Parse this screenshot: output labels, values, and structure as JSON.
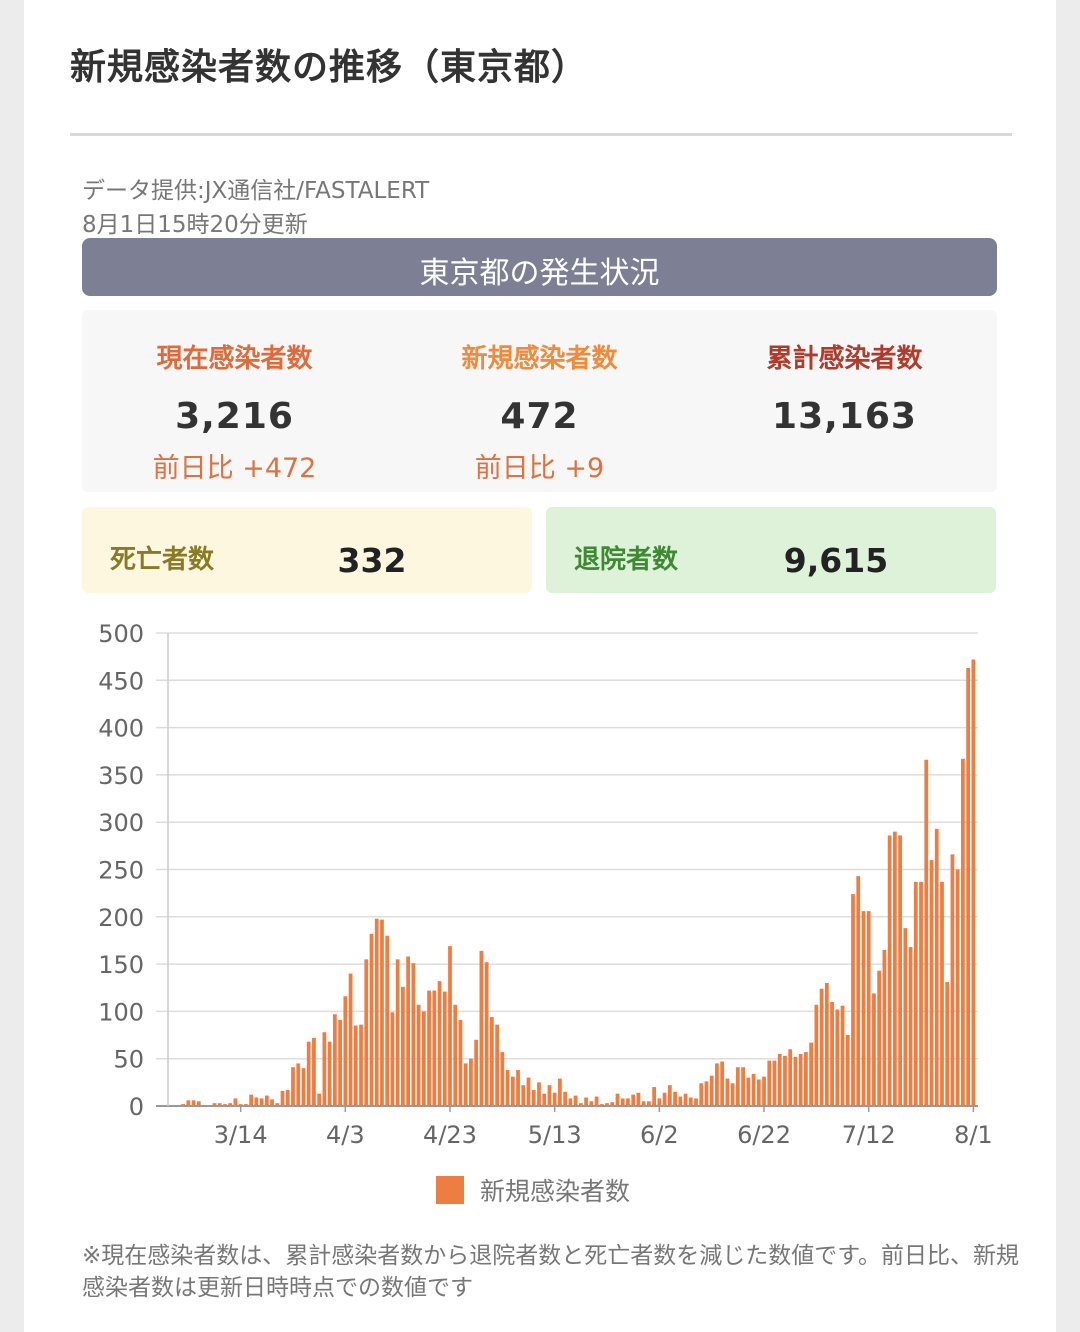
{
  "title": "新規感染者数の推移（東京都）",
  "source": {
    "provider": "データ提供:JX通信社/FASTALERT",
    "updated": "8月1日15時20分更新"
  },
  "status": {
    "header": "東京都の発生状況",
    "current": {
      "label": "現在感染者数",
      "value": "3,216",
      "delta": "前日比 +472",
      "color": "#e06a3a"
    },
    "new": {
      "label": "新規感染者数",
      "value": "472",
      "delta": "前日比 +9",
      "color": "#f08a3c"
    },
    "total": {
      "label": "累計感染者数",
      "value": "13,163",
      "color": "#b23a2a"
    },
    "deaths": {
      "label": "死亡者数",
      "value": "332",
      "bg": "#fdf7df",
      "color": "#8a7a25"
    },
    "discharged": {
      "label": "退院者数",
      "value": "9,615",
      "bg": "#ddf2d9",
      "color": "#3e8a33"
    }
  },
  "chart_data": {
    "type": "bar",
    "x_ticks": [
      "3/14",
      "4/3",
      "4/23",
      "5/13",
      "6/2",
      "6/22",
      "7/12",
      "8/1"
    ],
    "ylim": [
      0,
      500
    ],
    "y_ticks": [
      "0",
      "50",
      "100",
      "150",
      "200",
      "250",
      "300",
      "350",
      "400",
      "450",
      "500"
    ],
    "bar_color": "#ee7d42",
    "legend": "新規感染者数",
    "grid": true,
    "series": [
      {
        "name": "新規感染者数",
        "values": [
          0,
          0,
          2,
          6,
          6,
          5,
          1,
          0,
          3,
          3,
          2,
          3,
          8,
          2,
          2,
          12,
          9,
          8,
          11,
          7,
          3,
          16,
          17,
          41,
          45,
          40,
          68,
          72,
          13,
          78,
          68,
          97,
          91,
          116,
          140,
          85,
          86,
          155,
          182,
          198,
          197,
          180,
          99,
          155,
          126,
          158,
          151,
          107,
          100,
          122,
          122,
          132,
          121,
          169,
          107,
          91,
          45,
          50,
          70,
          164,
          152,
          94,
          86,
          57,
          38,
          31,
          38,
          22,
          30,
          17,
          25,
          13,
          22,
          14,
          29,
          15,
          8,
          11,
          3,
          9,
          5,
          10,
          2,
          3,
          4,
          13,
          8,
          8,
          12,
          14,
          5,
          5,
          20,
          8,
          14,
          22,
          15,
          10,
          13,
          9,
          8,
          24,
          26,
          32,
          45,
          47,
          29,
          24,
          41,
          41,
          30,
          34,
          28,
          31,
          48,
          48,
          55,
          53,
          60,
          52,
          55,
          57,
          67,
          107,
          124,
          130,
          110,
          102,
          106,
          75,
          224,
          243,
          206,
          206,
          119,
          143,
          165,
          286,
          290,
          286,
          188,
          168,
          237,
          237,
          366,
          260,
          293,
          237,
          131,
          266,
          250,
          367,
          463,
          472
        ]
      }
    ]
  },
  "footnote": "※現在感染者数は、累計感染者数から退院者数と死亡者数を減じた数値です。前日比、新規感染者数は更新日時時点での数値です"
}
